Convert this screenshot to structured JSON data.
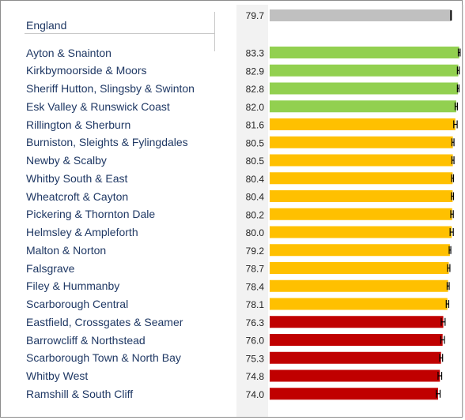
{
  "chart_data": {
    "type": "bar",
    "orientation": "horizontal",
    "benchmark": {
      "label": "England",
      "value": 79.7,
      "color": "#c0c0c0"
    },
    "categories": [
      "Ayton & Snainton",
      "Kirkbymoorside & Moors",
      "Sheriff Hutton, Slingsby & Swinton",
      "Esk Valley & Runswick Coast",
      "Rillington & Sherburn",
      "Burniston, Sleights & Fylingdales",
      "Newby & Scalby",
      "Whitby South & East",
      "Wheatcroft & Cayton",
      "Pickering & Thornton Dale",
      "Helmsley & Ampleforth",
      "Malton & Norton",
      "Falsgrave",
      "Filey & Hummanby",
      "Scarborough Central",
      "Eastfield, Crossgates & Seamer",
      "Barrowcliff & Northstead",
      "Scarborough Town & North Bay",
      "Whitby West",
      "Ramshill & South Cliff"
    ],
    "values": [
      83.3,
      82.9,
      82.8,
      82.0,
      81.6,
      80.5,
      80.5,
      80.4,
      80.4,
      80.2,
      80.0,
      79.2,
      78.7,
      78.4,
      78.1,
      76.3,
      76.0,
      75.3,
      74.8,
      74.0
    ],
    "value_labels": [
      "83.3",
      "82.9",
      "82.8",
      "82.0",
      "81.6",
      "80.5",
      "80.5",
      "80.4",
      "80.4",
      "80.2",
      "80.0",
      "79.2",
      "78.7",
      "78.4",
      "78.1",
      "76.3",
      "76.0",
      "75.3",
      "74.8",
      "74.0"
    ],
    "error_low": [
      82.9,
      82.5,
      82.5,
      81.5,
      80.9,
      80.1,
      80.1,
      80.0,
      79.9,
      79.6,
      79.3,
      78.9,
      78.2,
      78.0,
      77.6,
      75.4,
      75.2,
      74.7,
      74.0,
      73.2
    ],
    "error_high": [
      83.7,
      83.3,
      83.2,
      82.5,
      82.4,
      81.0,
      81.0,
      80.8,
      80.8,
      80.7,
      80.7,
      79.6,
      79.2,
      78.9,
      78.7,
      77.1,
      76.8,
      76.0,
      75.6,
      74.9
    ],
    "status": [
      "better",
      "better",
      "better",
      "better",
      "similar",
      "similar",
      "similar",
      "similar",
      "similar",
      "similar",
      "similar",
      "similar",
      "similar",
      "similar",
      "similar",
      "worse",
      "worse",
      "worse",
      "worse",
      "worse"
    ],
    "status_colors": {
      "better": "#92d050",
      "similar": "#ffc000",
      "worse": "#c00000"
    },
    "england_value_label": "79.7",
    "xlim": [
      0,
      84.8
    ],
    "title": "",
    "xlabel": "",
    "ylabel": "",
    "grid": false,
    "legend": "none"
  }
}
